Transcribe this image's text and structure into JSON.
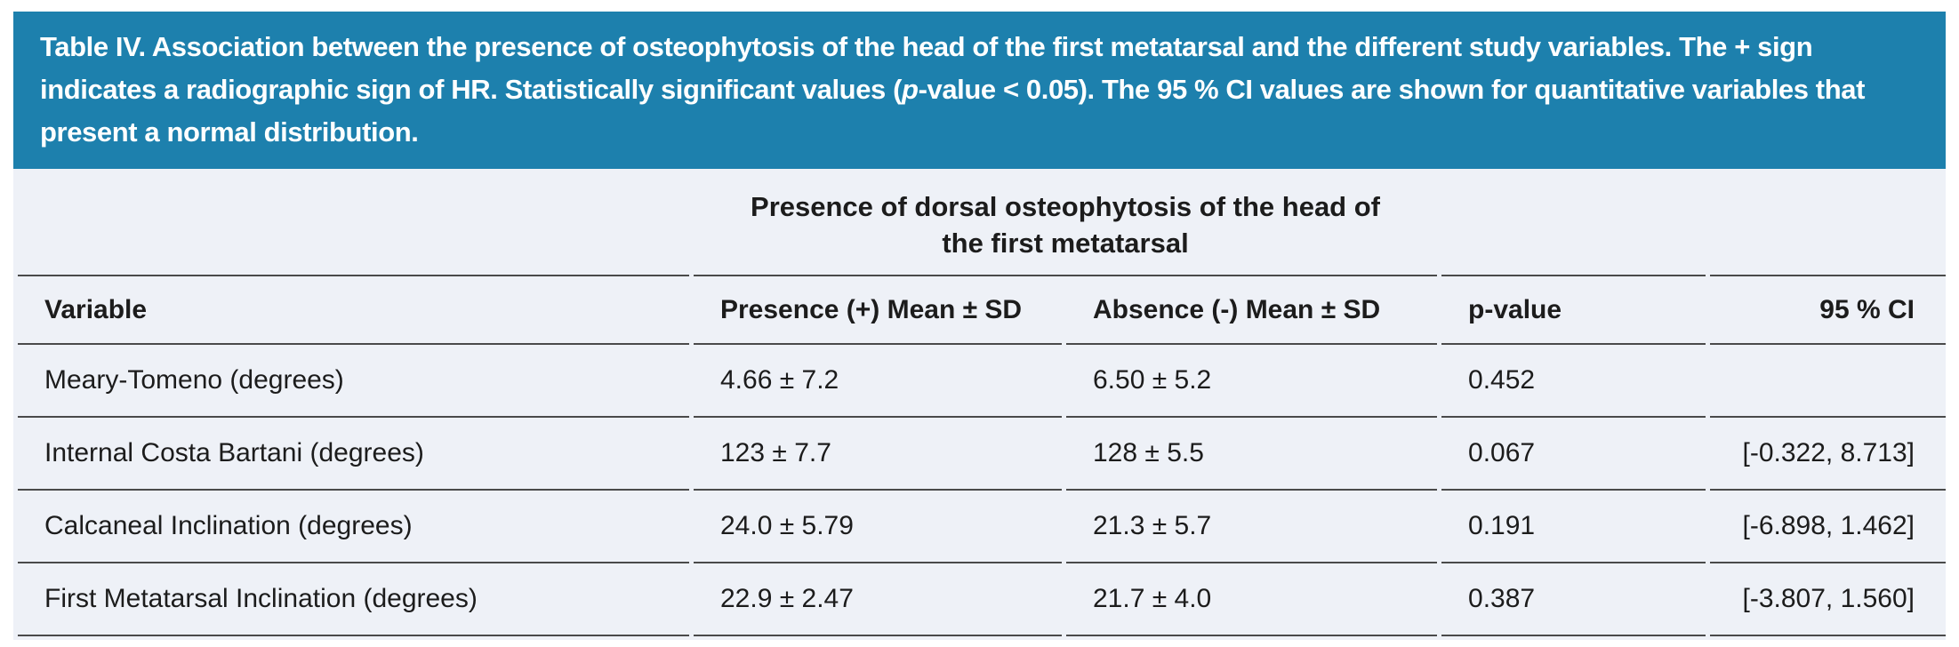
{
  "banner": {
    "title_segments": [
      {
        "t": "Table IV. Association between the presence of osteophytosis of the head of the first metatarsal and the different study variables. The + sign indicates a radiographic sign of HR. Statistically significant values ("
      },
      {
        "t": "p",
        "i": true
      },
      {
        "t": "-value < 0.05). The 95 % CI values are shown for quantitative variables that present a normal distribution."
      }
    ]
  },
  "table": {
    "span_header": {
      "line1": "Presence of dorsal osteophytosis of the head of",
      "line2": "the first metatarsal"
    },
    "columns": {
      "variable": "Variable",
      "presence": "Presence (+) Mean ± SD",
      "absence": "Absence (-) Mean ± SD",
      "p_value": "p-value",
      "ci": "95 % CI"
    },
    "rows": [
      {
        "variable": "Meary-Tomeno (degrees)",
        "presence": "4.66 ± 7.2",
        "absence": "6.50 ± 5.2",
        "p": "0.452",
        "ci": ""
      },
      {
        "variable": "Internal Costa Bartani (degrees)",
        "presence": "123 ± 7.7",
        "absence": "128 ± 5.5",
        "p": "0.067",
        "ci": "[-0.322, 8.713]"
      },
      {
        "variable": "Calcaneal Inclination (degrees)",
        "presence": "24.0 ± 5.79",
        "absence": "21.3 ± 5.7",
        "p": "0.191",
        "ci": "[-6.898, 1.462]"
      },
      {
        "variable": "First Metatarsal Inclination (degrees)",
        "presence": "22.9 ± 2.47",
        "absence": "21.7 ± 4.0",
        "p": "0.387",
        "ci": "[-3.807, 1.560]"
      }
    ]
  },
  "colors": {
    "banner_bg": "#1d80ad",
    "banner_text": "#ffffff",
    "sheet_bg": "#eef1f7",
    "text": "#1c1c1c",
    "rule": "#4a4a4a",
    "page_bg": "#ffffff"
  }
}
